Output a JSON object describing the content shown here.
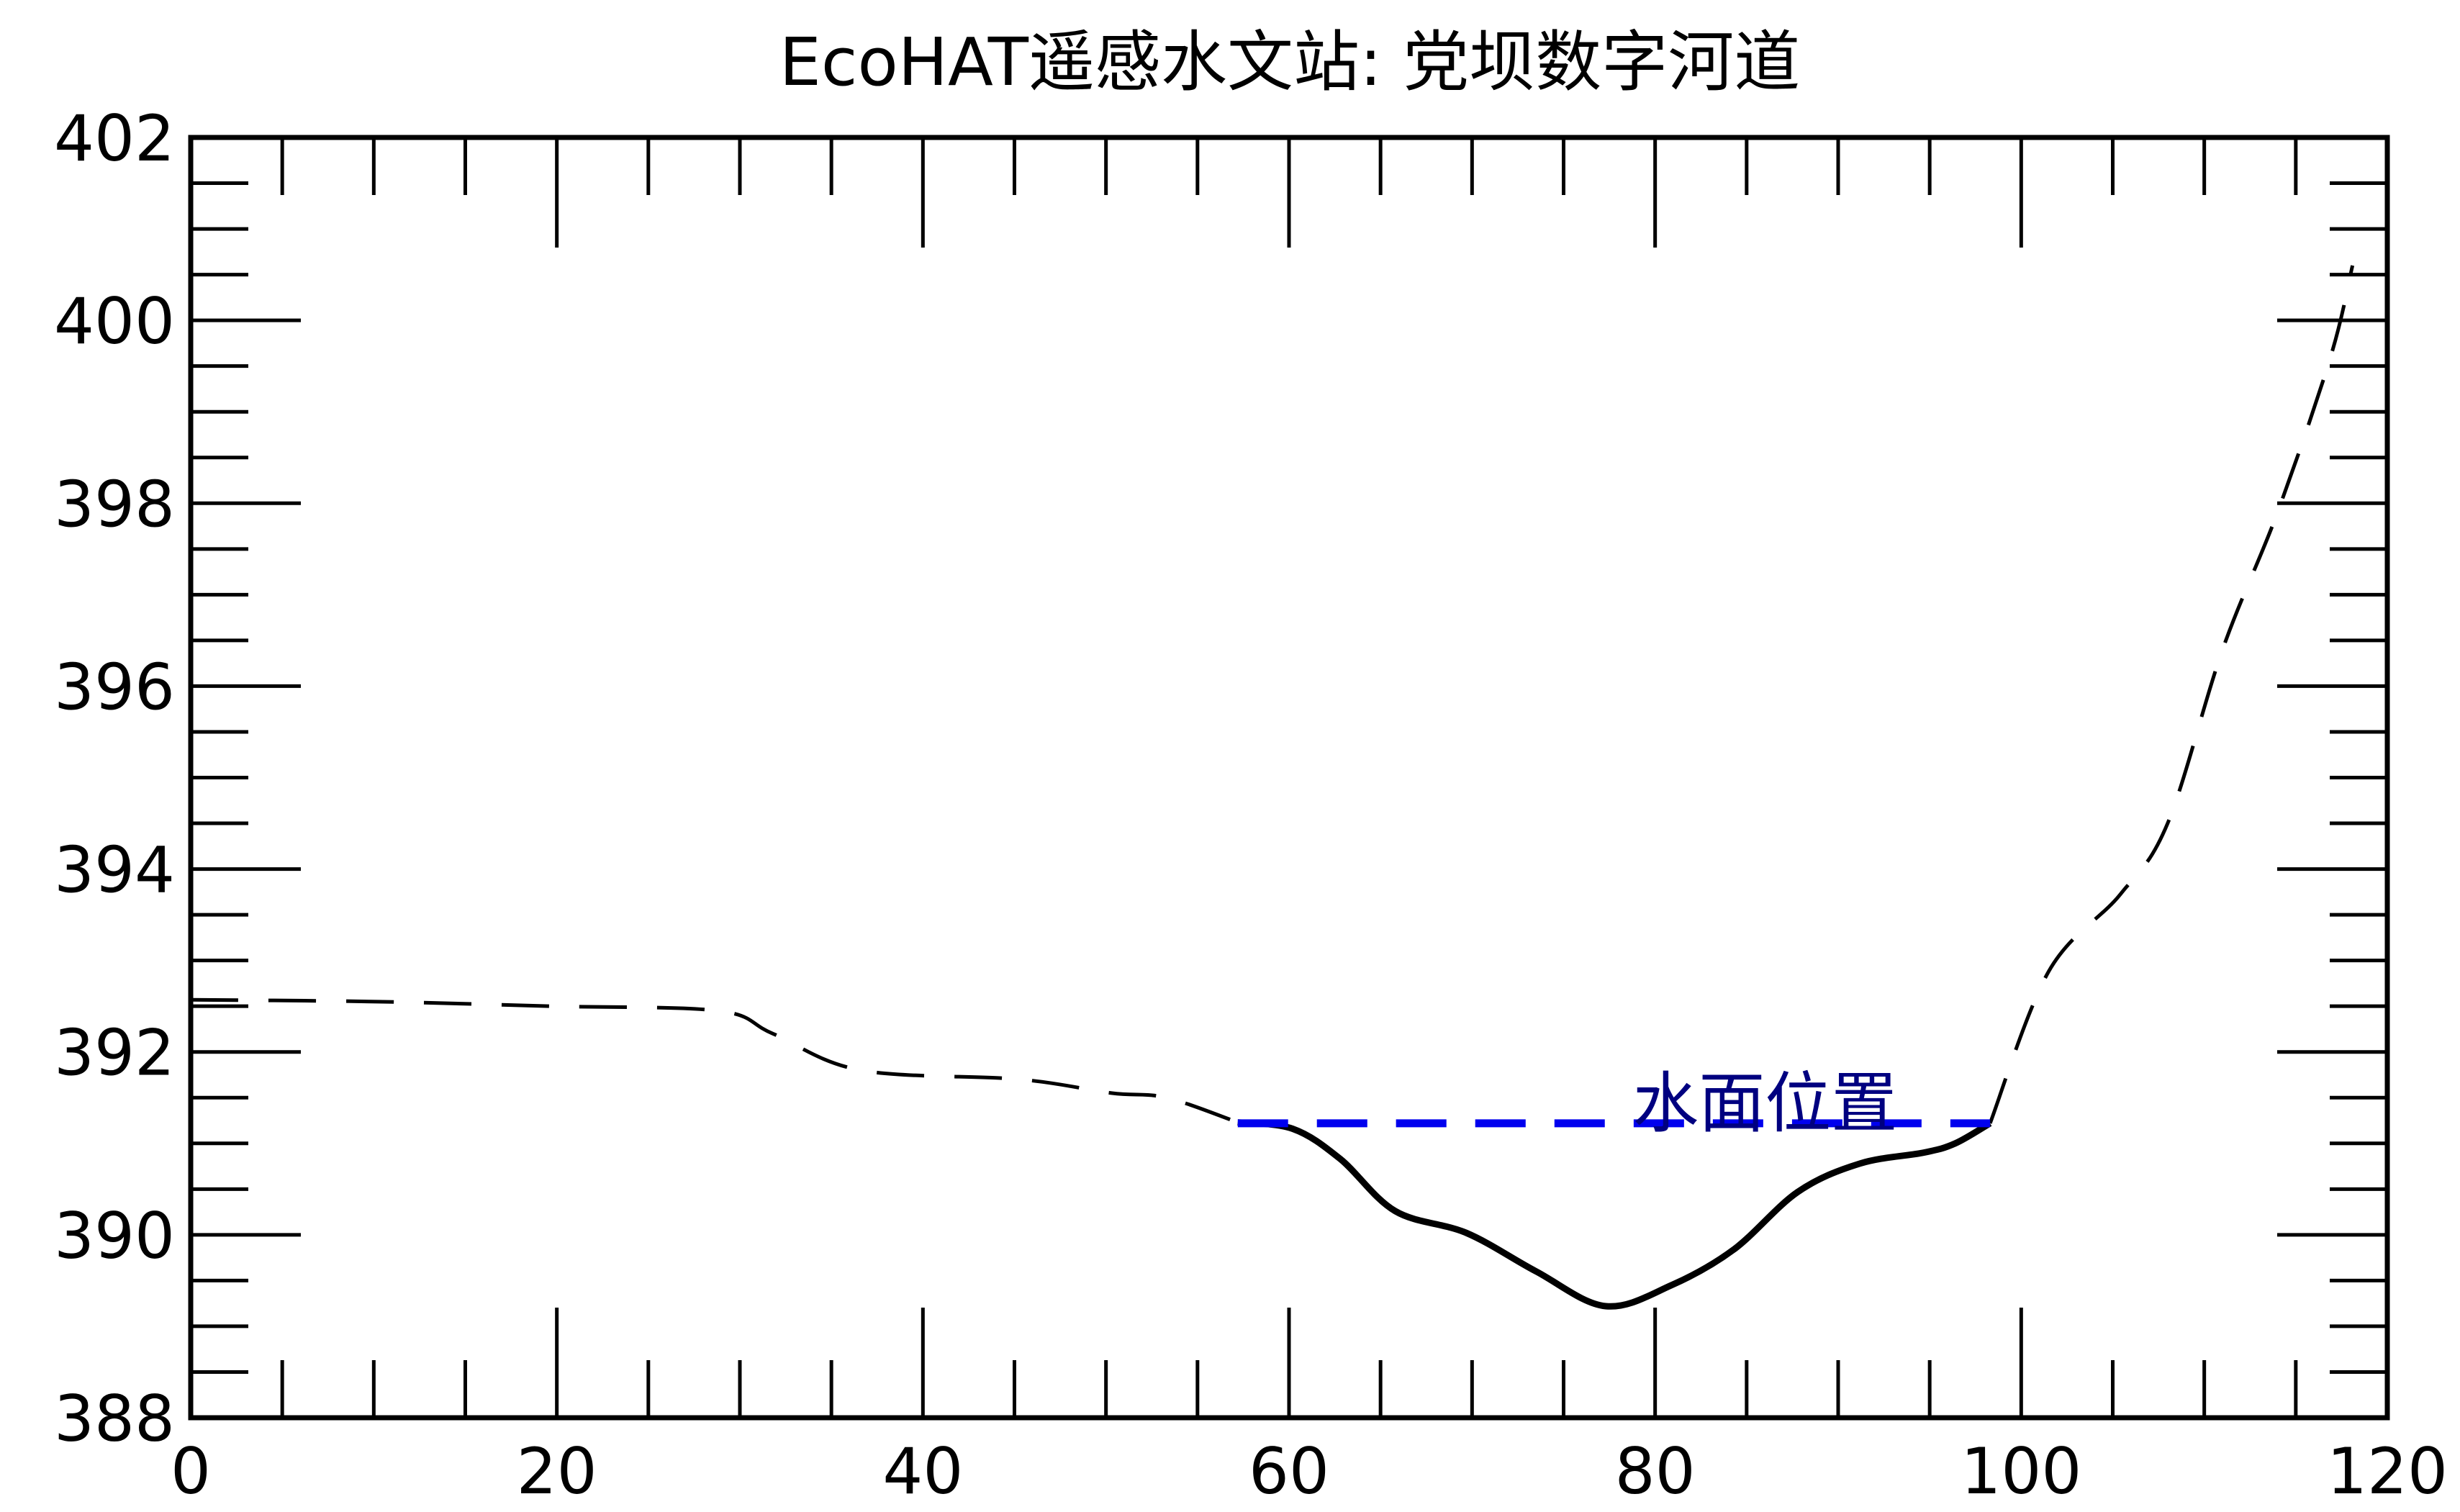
{
  "chart_data": {
    "type": "line",
    "title": "EcoHAT遥感水文站: 党坝数字河道",
    "xlabel": "",
    "ylabel": "",
    "xlim": [
      0,
      120
    ],
    "ylim": [
      388,
      402
    ],
    "xticks": [
      0,
      20,
      40,
      60,
      80,
      100,
      120
    ],
    "yticks": [
      388,
      390,
      392,
      394,
      396,
      398,
      400,
      402
    ],
    "x_minor_step": 5,
    "y_minor_step": 0.5,
    "grid": false,
    "series": [
      {
        "style": "dashed",
        "color": "#000000",
        "x": [
          0,
          10.2,
          19.7,
          28.8,
          31.8,
          36.6,
          45.3,
          50.3,
          53.3,
          57.2
        ],
        "y": [
          392.57,
          392.55,
          392.5,
          392.45,
          392.2,
          391.8,
          391.7,
          391.55,
          391.5,
          391.23
        ]
      },
      {
        "style": "solid",
        "color": "#000000",
        "x": [
          57.2,
          60.2,
          62.8,
          65.8,
          69.7,
          73.5,
          77.3,
          80.9,
          84.3,
          87.8,
          91.2,
          94.7,
          96.4,
          98.3
        ],
        "y": [
          391.23,
          391.16,
          390.83,
          390.26,
          390.02,
          389.6,
          389.22,
          389.45,
          389.84,
          390.47,
          390.78,
          390.9,
          391.0,
          391.22
        ]
      },
      {
        "style": "dashed",
        "color": "#000000",
        "x": [
          98.3,
          101.5,
          105.4,
          108.0,
          111.0,
          114.0,
          116.9,
          118.1
        ],
        "y": [
          391.22,
          392.88,
          393.72,
          394.5,
          396.4,
          397.9,
          399.6,
          400.6
        ]
      },
      {
        "style": "dashed-thick",
        "color": "#0000ee",
        "x": [
          57.2,
          98.3
        ],
        "y": [
          391.22,
          391.22
        ]
      }
    ],
    "annotations": [
      {
        "text": "水面位置",
        "x": 86,
        "y": 391.25,
        "color": "#000080"
      }
    ]
  }
}
